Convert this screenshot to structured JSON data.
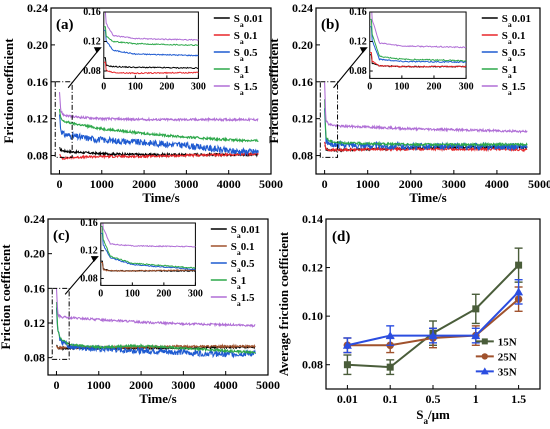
{
  "chart_data": [
    {
      "type": "line",
      "panel_label": "(a)",
      "xlabel": "Time/s",
      "ylabel": "Friction coefficient",
      "xlim": [
        -200,
        5000
      ],
      "ylim": [
        0.06,
        0.24
      ],
      "xticks": [
        "0",
        "1000",
        "2000",
        "3000",
        "4000",
        "5000"
      ],
      "yticks": [
        "0.08",
        "0.12",
        "0.16",
        "0.20",
        "0.24"
      ],
      "legend_position": "top-right",
      "series": [
        {
          "name": "S<sub>a</sub>0.01",
          "color": "#000000",
          "x": [
            0,
            30,
            100,
            300,
            1000,
            2000,
            3000,
            4000,
            4700
          ],
          "y": [
            0.088,
            0.086,
            0.085,
            0.084,
            0.082,
            0.081,
            0.081,
            0.081,
            0.081
          ]
        },
        {
          "name": "S<sub>a</sub>0.1",
          "color": "#e8262a",
          "x": [
            0,
            30,
            100,
            300,
            1000,
            2000,
            3000,
            4000,
            4700
          ],
          "y": [
            0.082,
            0.078,
            0.077,
            0.078,
            0.079,
            0.079,
            0.08,
            0.081,
            0.082
          ]
        },
        {
          "name": "S<sub>a</sub>0.5",
          "color": "#1f5bd1",
          "x": [
            0,
            30,
            100,
            300,
            1000,
            2000,
            3000,
            3500,
            4000,
            4700
          ],
          "y": [
            0.125,
            0.108,
            0.103,
            0.101,
            0.097,
            0.094,
            0.091,
            0.088,
            0.085,
            0.084
          ]
        },
        {
          "name": "S<sub>a</sub>1",
          "color": "#2da84a",
          "x": [
            0,
            30,
            100,
            300,
            1000,
            2000,
            3000,
            4000,
            4700
          ],
          "y": [
            0.13,
            0.12,
            0.117,
            0.115,
            0.109,
            0.104,
            0.1,
            0.097,
            0.096
          ]
        },
        {
          "name": "S<sub>a</sub>1.5",
          "color": "#b06fd6",
          "x": [
            0,
            30,
            100,
            300,
            1000,
            2000,
            3000,
            4000,
            4700
          ],
          "y": [
            0.15,
            0.128,
            0.124,
            0.122,
            0.12,
            0.119,
            0.119,
            0.119,
            0.119
          ]
        }
      ],
      "inset": {
        "xlim": [
          0,
          300
        ],
        "ylim": [
          0.07,
          0.16
        ],
        "xticks": [
          "0",
          "100",
          "200",
          "300"
        ],
        "yticks": [
          "0.08",
          "0.12",
          "0.16"
        ]
      }
    },
    {
      "type": "line",
      "panel_label": "(b)",
      "xlabel": "Time/s",
      "ylabel": "Friction coefficient",
      "xlim": [
        -200,
        5000
      ],
      "ylim": [
        0.06,
        0.24
      ],
      "xticks": [
        "0",
        "1000",
        "2000",
        "3000",
        "4000",
        "5000"
      ],
      "yticks": [
        "0.08",
        "0.12",
        "0.16",
        "0.20",
        "0.24"
      ],
      "legend_position": "top-right",
      "series": [
        {
          "name": "S<sub>a</sub>0.01",
          "color": "#000000",
          "x": [
            0,
            30,
            100,
            300,
            1000,
            2000,
            3000,
            4000,
            4700
          ],
          "y": [
            0.092,
            0.087,
            0.086,
            0.086,
            0.087,
            0.088,
            0.089,
            0.089,
            0.089
          ]
        },
        {
          "name": "S<sub>a</sub>0.1",
          "color": "#e8262a",
          "x": [
            0,
            30,
            100,
            300,
            1000,
            2000,
            3000,
            4000,
            4700
          ],
          "y": [
            0.095,
            0.087,
            0.086,
            0.086,
            0.087,
            0.087,
            0.087,
            0.087,
            0.086
          ]
        },
        {
          "name": "S<sub>a</sub>0.5",
          "color": "#1f5bd1",
          "x": [
            0,
            30,
            100,
            300,
            1000,
            2000,
            3000,
            4000,
            4700
          ],
          "y": [
            0.13,
            0.096,
            0.093,
            0.092,
            0.091,
            0.09,
            0.09,
            0.09,
            0.09
          ]
        },
        {
          "name": "S<sub>a</sub>1",
          "color": "#2da84a",
          "x": [
            0,
            30,
            100,
            300,
            1000,
            2000,
            3000,
            4000,
            4700
          ],
          "y": [
            0.14,
            0.1,
            0.096,
            0.094,
            0.093,
            0.092,
            0.092,
            0.092,
            0.092
          ]
        },
        {
          "name": "S<sub>a</sub>1.5",
          "color": "#b06fd6",
          "x": [
            0,
            30,
            100,
            300,
            1000,
            2000,
            3000,
            4000,
            4700
          ],
          "y": [
            0.16,
            0.118,
            0.114,
            0.112,
            0.111,
            0.109,
            0.108,
            0.107,
            0.106
          ]
        }
      ],
      "inset": {
        "xlim": [
          0,
          300
        ],
        "ylim": [
          0.07,
          0.16
        ],
        "xticks": [
          "0",
          "100",
          "200",
          "300"
        ],
        "yticks": [
          "0.08",
          "0.12",
          "0.16"
        ]
      }
    },
    {
      "type": "line",
      "panel_label": "(c)",
      "xlabel": "Time/s",
      "ylabel": "Friction coefficient",
      "xlim": [
        -200,
        5000
      ],
      "ylim": [
        0.06,
        0.24
      ],
      "xticks": [
        "0",
        "1000",
        "2000",
        "3000",
        "4000",
        "5000"
      ],
      "yticks": [
        "0.08",
        "0.12",
        "0.16",
        "0.20",
        "0.24"
      ],
      "legend_position": "top-right",
      "series": [
        {
          "name": "S<sub>a</sub>0.01",
          "color": "#000000",
          "x": [
            0,
            30,
            100,
            300,
            1000,
            2000,
            3000,
            4000,
            4700
          ],
          "y": [
            0.095,
            0.091,
            0.091,
            0.091,
            0.091,
            0.091,
            0.091,
            0.092,
            0.092
          ]
        },
        {
          "name": "S<sub>a</sub>0.1",
          "color": "#a0522d",
          "x": [
            0,
            30,
            100,
            300,
            1000,
            2000,
            3000,
            4000,
            4700
          ],
          "y": [
            0.093,
            0.091,
            0.091,
            0.092,
            0.092,
            0.092,
            0.093,
            0.093,
            0.093
          ]
        },
        {
          "name": "S<sub>a</sub>0.5",
          "color": "#1f5bd1",
          "x": [
            0,
            30,
            100,
            300,
            1000,
            2000,
            3000,
            4000,
            4700
          ],
          "y": [
            0.135,
            0.11,
            0.1,
            0.093,
            0.09,
            0.088,
            0.086,
            0.084,
            0.085
          ]
        },
        {
          "name": "S<sub>a</sub>1",
          "color": "#2da84a",
          "x": [
            0,
            30,
            100,
            300,
            1000,
            2000,
            3000,
            4000,
            4700
          ],
          "y": [
            0.145,
            0.112,
            0.102,
            0.095,
            0.092,
            0.094,
            0.091,
            0.088,
            0.086
          ]
        },
        {
          "name": "S<sub>a</sub>1.5",
          "color": "#b06fd6",
          "x": [
            0,
            30,
            100,
            300,
            1000,
            2000,
            3000,
            4000,
            4700
          ],
          "y": [
            0.16,
            0.13,
            0.127,
            0.126,
            0.124,
            0.121,
            0.119,
            0.118,
            0.117
          ]
        }
      ],
      "inset": {
        "xlim": [
          0,
          300
        ],
        "ylim": [
          0.07,
          0.16
        ],
        "xticks": [
          "0",
          "100",
          "200",
          "300"
        ],
        "yticks": [
          "0.08",
          "0.12",
          "0.16"
        ]
      }
    },
    {
      "type": "line",
      "panel_label": "(d)",
      "xlabel": "S<sub>a</sub>/μm",
      "ylabel": "Average friction coefficient",
      "categories": [
        "0.01",
        "0.1",
        "0.5",
        "1",
        "1.5"
      ],
      "ylim": [
        0.07,
        0.14
      ],
      "yticks": [
        "0.08",
        "0.10",
        "0.12",
        "0.14"
      ],
      "legend_position": "bottom-right",
      "series": [
        {
          "name": "15N",
          "color": "#4a5d3a",
          "marker": "square",
          "values": [
            0.08,
            0.079,
            0.093,
            0.103,
            0.121
          ],
          "errors": [
            0.004,
            0.003,
            0.005,
            0.006,
            0.007
          ]
        },
        {
          "name": "25N",
          "color": "#a0522d",
          "marker": "circle",
          "values": [
            0.088,
            0.088,
            0.091,
            0.092,
            0.107
          ],
          "errors": [
            0.003,
            0.003,
            0.004,
            0.004,
            0.005
          ]
        },
        {
          "name": "35N",
          "color": "#2b4de0",
          "marker": "triangle",
          "values": [
            0.088,
            0.092,
            0.092,
            0.092,
            0.11
          ],
          "errors": [
            0.003,
            0.004,
            0.003,
            0.003,
            0.005
          ]
        }
      ]
    }
  ]
}
